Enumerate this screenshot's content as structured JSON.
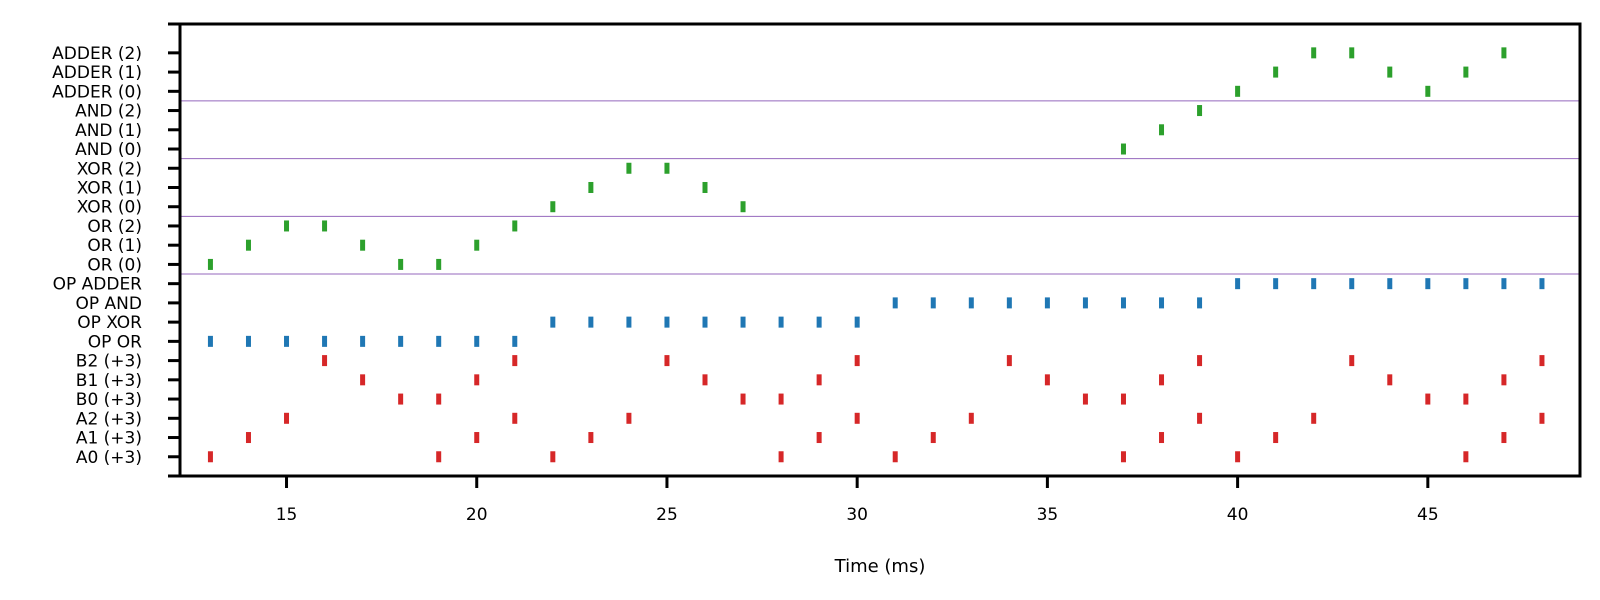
{
  "chart_data": {
    "type": "scatter",
    "title": "",
    "xlabel": "Time (ms)",
    "ylabel": "",
    "xlim": [
      12.2,
      49
    ],
    "xticks": [
      15,
      20,
      25,
      30,
      35,
      40,
      45
    ],
    "ylim": [
      -1,
      22.5
    ],
    "yticks_minor": [
      -1,
      22.5
    ],
    "rows": [
      "A0 (+3)",
      "A1 (+3)",
      "A2 (+3)",
      "B0 (+3)",
      "B1 (+3)",
      "B2 (+3)",
      "OP OR",
      "OP XOR",
      "OP AND",
      "OP ADDER",
      "OR (0)",
      "OR (1)",
      "OR (2)",
      "XOR (0)",
      "XOR (1)",
      "XOR (2)",
      "AND (0)",
      "AND (1)",
      "AND (2)",
      "ADDER (0)",
      "ADDER (1)",
      "ADDER (2)"
    ],
    "separators_after_row": [
      9,
      12,
      15,
      18
    ],
    "grid": false,
    "colors": {
      "input": "#d62728",
      "op": "#1f77b4",
      "output": "#2ca02c",
      "separator": "#9467bd"
    },
    "series": [
      {
        "group": "input",
        "spikes": [
          {
            "row": 0,
            "times": [
              13,
              19,
              22,
              28,
              31,
              37,
              40,
              46
            ]
          },
          {
            "row": 1,
            "times": [
              14,
              20,
              23,
              29,
              32,
              38,
              41,
              47
            ]
          },
          {
            "row": 2,
            "times": [
              15,
              21,
              24,
              30,
              33,
              39,
              42,
              48
            ]
          },
          {
            "row": 3,
            "times": [
              18,
              19,
              27,
              28,
              36,
              37,
              45,
              46
            ]
          },
          {
            "row": 4,
            "times": [
              17,
              20,
              26,
              29,
              35,
              38,
              44,
              47
            ]
          },
          {
            "row": 5,
            "times": [
              16,
              21,
              25,
              30,
              34,
              39,
              43,
              48
            ]
          }
        ]
      },
      {
        "group": "op",
        "spikes": [
          {
            "row": 6,
            "times": [
              13,
              14,
              15,
              16,
              17,
              18,
              19,
              20,
              21
            ]
          },
          {
            "row": 7,
            "times": [
              22,
              23,
              24,
              25,
              26,
              27,
              28,
              29,
              30
            ]
          },
          {
            "row": 8,
            "times": [
              31,
              32,
              33,
              34,
              35,
              36,
              37,
              38,
              39
            ]
          },
          {
            "row": 9,
            "times": [
              40,
              41,
              42,
              43,
              44,
              45,
              46,
              47,
              48
            ]
          }
        ]
      },
      {
        "group": "output",
        "spikes": [
          {
            "row": 10,
            "times": [
              13,
              18,
              19
            ]
          },
          {
            "row": 11,
            "times": [
              14,
              17,
              20
            ]
          },
          {
            "row": 12,
            "times": [
              15,
              16,
              21
            ]
          },
          {
            "row": 13,
            "times": [
              22,
              27
            ]
          },
          {
            "row": 14,
            "times": [
              23,
              26
            ]
          },
          {
            "row": 15,
            "times": [
              24,
              25
            ]
          },
          {
            "row": 16,
            "times": [
              37
            ]
          },
          {
            "row": 17,
            "times": [
              38
            ]
          },
          {
            "row": 18,
            "times": [
              39
            ]
          },
          {
            "row": 19,
            "times": [
              40,
              45
            ]
          },
          {
            "row": 20,
            "times": [
              41,
              44,
              46
            ]
          },
          {
            "row": 21,
            "times": [
              42,
              43,
              47
            ]
          }
        ]
      }
    ]
  }
}
